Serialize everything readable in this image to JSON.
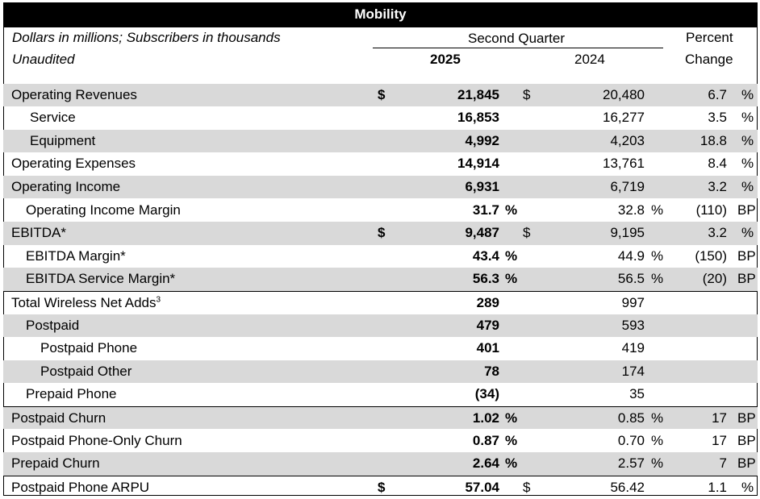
{
  "title": "Mobility",
  "header": {
    "units_note": "Dollars in millions; Subscribers in thousands",
    "audit_note": "Unaudited",
    "period": "Second Quarter",
    "year_current": "2025",
    "year_prior": "2024",
    "change_line1": "Percent",
    "change_line2": "Change"
  },
  "rows": [
    {
      "label": "Operating Revenues",
      "cur_dollar": "$",
      "cur": "21,845",
      "prior_dollar": "$",
      "prior": "20,480",
      "change": "6.7",
      "change_unit": "%"
    },
    {
      "label": "Service",
      "cur": "16,853",
      "prior": "16,277",
      "change": "3.5",
      "change_unit": "%"
    },
    {
      "label": "Equipment",
      "cur": "4,992",
      "prior": "4,203",
      "change": "18.8",
      "change_unit": "%"
    },
    {
      "label": "Operating Expenses",
      "cur": "14,914",
      "prior": "13,761",
      "change": "8.4",
      "change_unit": "%"
    },
    {
      "label": "Operating Income",
      "cur": "6,931",
      "prior": "6,719",
      "change": "3.2",
      "change_unit": "%"
    },
    {
      "label": "Operating Income Margin",
      "cur": "31.7",
      "cur_unit": "%",
      "prior": "32.8",
      "prior_unit": "%",
      "change": "(110)",
      "change_unit": "BP"
    },
    {
      "label": "EBITDA*",
      "cur_dollar": "$",
      "cur": "9,487",
      "prior_dollar": "$",
      "prior": "9,195",
      "change": "3.2",
      "change_unit": "%"
    },
    {
      "label": "EBITDA Margin*",
      "cur": "43.4",
      "cur_unit": "%",
      "prior": "44.9",
      "prior_unit": "%",
      "change": "(150)",
      "change_unit": "BP"
    },
    {
      "label": "EBITDA Service Margin*",
      "cur": "56.3",
      "cur_unit": "%",
      "prior": "56.5",
      "prior_unit": "%",
      "change": "(20)",
      "change_unit": "BP"
    },
    {
      "label": "Total Wireless Net Adds",
      "label_sup": "3",
      "cur": "289",
      "prior": "997"
    },
    {
      "label": "Postpaid",
      "cur": "479",
      "prior": "593"
    },
    {
      "label": "Postpaid Phone",
      "cur": "401",
      "prior": "419"
    },
    {
      "label": "Postpaid Other",
      "cur": "78",
      "prior": "174"
    },
    {
      "label": "Prepaid Phone",
      "cur": "(34)",
      "prior": "35"
    },
    {
      "label": "Postpaid Churn",
      "cur": "1.02",
      "cur_unit": "%",
      "prior": "0.85",
      "prior_unit": "%",
      "change": "17",
      "change_unit": "BP"
    },
    {
      "label": "Postpaid Phone-Only Churn",
      "cur": "0.87",
      "cur_unit": "%",
      "prior": "0.70",
      "prior_unit": "%",
      "change": "17",
      "change_unit": "BP"
    },
    {
      "label": "Prepaid Churn",
      "cur": "2.64",
      "cur_unit": "%",
      "prior": "2.57",
      "prior_unit": "%",
      "change": "7",
      "change_unit": "BP"
    },
    {
      "label": "Postpaid Phone ARPU",
      "cur_dollar": "$",
      "cur": "57.04",
      "prior_dollar": "$",
      "prior": "56.42",
      "change": "1.1",
      "change_unit": "%"
    }
  ],
  "colors": {
    "shade": "#d9d9d9",
    "title_bg": "#000000",
    "title_fg": "#ffffff"
  }
}
